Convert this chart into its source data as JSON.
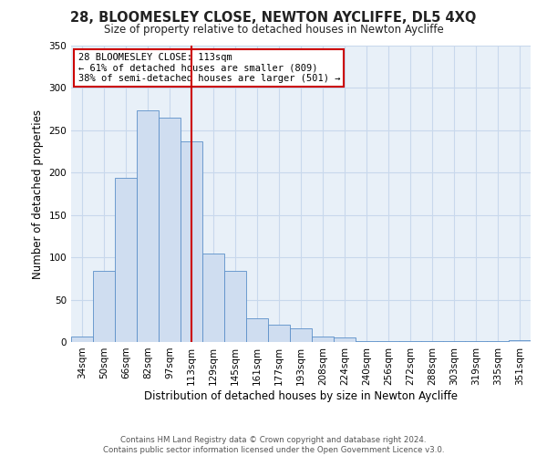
{
  "title": "28, BLOOMESLEY CLOSE, NEWTON AYCLIFFE, DL5 4XQ",
  "subtitle": "Size of property relative to detached houses in Newton Aycliffe",
  "xlabel": "Distribution of detached houses by size in Newton Aycliffe",
  "ylabel": "Number of detached properties",
  "categories": [
    "34sqm",
    "50sqm",
    "66sqm",
    "82sqm",
    "97sqm",
    "113sqm",
    "129sqm",
    "145sqm",
    "161sqm",
    "177sqm",
    "193sqm",
    "208sqm",
    "224sqm",
    "240sqm",
    "256sqm",
    "272sqm",
    "288sqm",
    "303sqm",
    "319sqm",
    "335sqm",
    "351sqm"
  ],
  "values": [
    6,
    84,
    194,
    274,
    265,
    237,
    105,
    84,
    28,
    20,
    16,
    7,
    5,
    1,
    1,
    1,
    1,
    1,
    1,
    1,
    2
  ],
  "bar_color": "#cfddf0",
  "bar_edge_color": "#5b8fc9",
  "vline_x_index": 5,
  "vline_color": "#cc0000",
  "annotation_title": "28 BLOOMESLEY CLOSE: 113sqm",
  "annotation_line1": "← 61% of detached houses are smaller (809)",
  "annotation_line2": "38% of semi-detached houses are larger (501) →",
  "annotation_box_color": "#ffffff",
  "annotation_box_edge_color": "#cc0000",
  "ylim": [
    0,
    350
  ],
  "yticks": [
    0,
    50,
    100,
    150,
    200,
    250,
    300,
    350
  ],
  "footer_line1": "Contains HM Land Registry data © Crown copyright and database right 2024.",
  "footer_line2": "Contains public sector information licensed under the Open Government Licence v3.0.",
  "title_fontsize": 10.5,
  "subtitle_fontsize": 8.5,
  "xlabel_fontsize": 8.5,
  "ylabel_fontsize": 8.5,
  "tick_fontsize": 7.5,
  "annotation_fontsize": 7.5,
  "footer_fontsize": 6.2,
  "background_color": "#ffffff",
  "grid_color": "#c8d8ec",
  "plot_bg_color": "#e8f0f8"
}
